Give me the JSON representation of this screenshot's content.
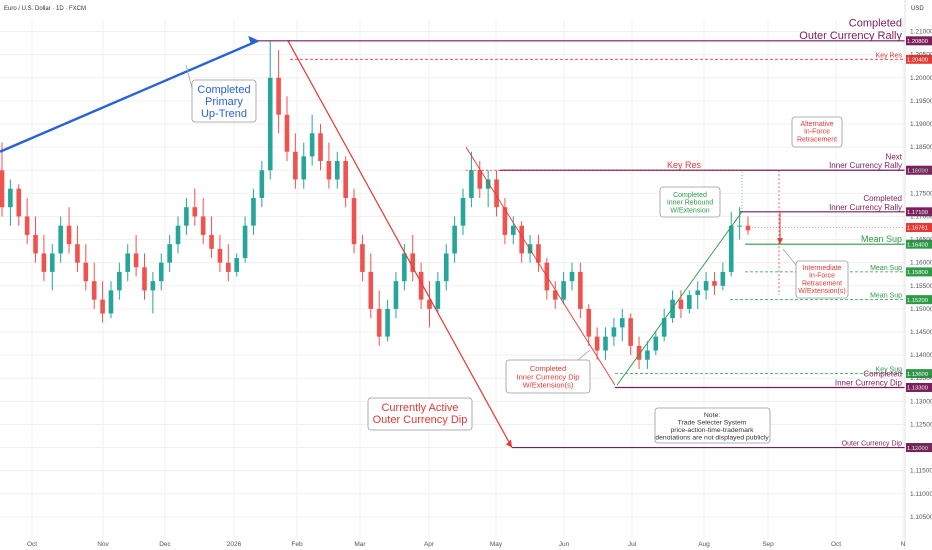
{
  "header": {
    "title": "Euro / U.S. Dollar · 1D · FXCM",
    "currency": "USD"
  },
  "colors": {
    "up": "#26a69a",
    "down": "#ef5350",
    "purple": "#7b1e5a",
    "red": "#e53935",
    "blue": "#2962d6",
    "green": "#2e9a48",
    "grid": "#f0f0f0"
  },
  "chart_data": {
    "type": "candlestick",
    "ylim": [
      1.1,
      1.2125
    ],
    "y_ticks": [
      "1.10500",
      "1.11000",
      "1.11500",
      "1.12000",
      "1.12500",
      "1.13000",
      "1.13500",
      "1.14000",
      "1.14500",
      "1.15000",
      "1.15500",
      "1.16000",
      "1.16500",
      "1.17000",
      "1.17500",
      "1.18000",
      "1.18500",
      "1.19000",
      "1.19500",
      "1.20000",
      "1.20500",
      "1.21000"
    ],
    "x_ticks": [
      "Oct",
      "Nov",
      "Dec",
      "2026",
      "Feb",
      "Mar",
      "Apr",
      "May",
      "Jun",
      "Jul",
      "Aug",
      "Sep",
      "Oct",
      "N"
    ],
    "candles": [
      [
        1.18,
        1.186,
        1.17,
        1.172
      ],
      [
        1.172,
        1.178,
        1.168,
        1.176
      ],
      [
        1.176,
        1.177,
        1.168,
        1.17
      ],
      [
        1.17,
        1.174,
        1.164,
        1.166
      ],
      [
        1.166,
        1.17,
        1.16,
        1.162
      ],
      [
        1.162,
        1.166,
        1.156,
        1.158
      ],
      [
        1.158,
        1.164,
        1.154,
        1.162
      ],
      [
        1.162,
        1.17,
        1.16,
        1.168
      ],
      [
        1.168,
        1.172,
        1.162,
        1.164
      ],
      [
        1.164,
        1.168,
        1.158,
        1.16
      ],
      [
        1.16,
        1.164,
        1.154,
        1.156
      ],
      [
        1.156,
        1.16,
        1.15,
        1.152
      ],
      [
        1.152,
        1.156,
        1.147,
        1.149
      ],
      [
        1.149,
        1.156,
        1.148,
        1.154
      ],
      [
        1.154,
        1.16,
        1.152,
        1.158
      ],
      [
        1.158,
        1.164,
        1.156,
        1.162
      ],
      [
        1.162,
        1.166,
        1.157,
        1.159
      ],
      [
        1.159,
        1.162,
        1.152,
        1.154
      ],
      [
        1.154,
        1.158,
        1.149,
        1.156
      ],
      [
        1.156,
        1.162,
        1.154,
        1.16
      ],
      [
        1.16,
        1.166,
        1.158,
        1.164
      ],
      [
        1.164,
        1.17,
        1.162,
        1.168
      ],
      [
        1.168,
        1.174,
        1.166,
        1.172
      ],
      [
        1.172,
        1.176,
        1.168,
        1.17
      ],
      [
        1.17,
        1.174,
        1.164,
        1.166
      ],
      [
        1.166,
        1.17,
        1.161,
        1.163
      ],
      [
        1.163,
        1.166,
        1.158,
        1.16
      ],
      [
        1.16,
        1.164,
        1.156,
        1.158
      ],
      [
        1.158,
        1.162,
        1.157,
        1.161
      ],
      [
        1.161,
        1.17,
        1.16,
        1.168
      ],
      [
        1.168,
        1.176,
        1.166,
        1.174
      ],
      [
        1.174,
        1.182,
        1.172,
        1.18
      ],
      [
        1.18,
        1.208,
        1.178,
        1.2
      ],
      [
        1.2,
        1.206,
        1.188,
        1.192
      ],
      [
        1.192,
        1.196,
        1.182,
        1.184
      ],
      [
        1.184,
        1.188,
        1.176,
        1.178
      ],
      [
        1.178,
        1.186,
        1.176,
        1.183
      ],
      [
        1.183,
        1.192,
        1.181,
        1.188
      ],
      [
        1.188,
        1.19,
        1.18,
        1.182
      ],
      [
        1.182,
        1.186,
        1.176,
        1.178
      ],
      [
        1.178,
        1.184,
        1.176,
        1.182
      ],
      [
        1.182,
        1.183,
        1.172,
        1.174
      ],
      [
        1.174,
        1.176,
        1.162,
        1.164
      ],
      [
        1.164,
        1.166,
        1.156,
        1.158
      ],
      [
        1.158,
        1.162,
        1.148,
        1.15
      ],
      [
        1.15,
        1.154,
        1.142,
        1.144
      ],
      [
        1.144,
        1.152,
        1.143,
        1.15
      ],
      [
        1.15,
        1.158,
        1.148,
        1.156
      ],
      [
        1.156,
        1.164,
        1.154,
        1.162
      ],
      [
        1.162,
        1.166,
        1.156,
        1.158
      ],
      [
        1.158,
        1.16,
        1.15,
        1.152
      ],
      [
        1.152,
        1.156,
        1.146,
        1.15
      ],
      [
        1.15,
        1.158,
        1.149,
        1.156
      ],
      [
        1.156,
        1.164,
        1.154,
        1.162
      ],
      [
        1.162,
        1.17,
        1.16,
        1.168
      ],
      [
        1.168,
        1.176,
        1.166,
        1.174
      ],
      [
        1.174,
        1.184,
        1.172,
        1.18
      ],
      [
        1.18,
        1.182,
        1.174,
        1.176
      ],
      [
        1.176,
        1.18,
        1.172,
        1.178
      ],
      [
        1.178,
        1.18,
        1.17,
        1.172
      ],
      [
        1.172,
        1.174,
        1.164,
        1.166
      ],
      [
        1.166,
        1.17,
        1.164,
        1.168
      ],
      [
        1.168,
        1.169,
        1.16,
        1.162
      ],
      [
        1.162,
        1.166,
        1.16,
        1.164
      ],
      [
        1.164,
        1.166,
        1.158,
        1.16
      ],
      [
        1.16,
        1.161,
        1.152,
        1.154
      ],
      [
        1.154,
        1.156,
        1.15,
        1.152
      ],
      [
        1.152,
        1.158,
        1.151,
        1.156
      ],
      [
        1.156,
        1.16,
        1.154,
        1.158
      ],
      [
        1.158,
        1.16,
        1.148,
        1.15
      ],
      [
        1.15,
        1.151,
        1.142,
        1.144
      ],
      [
        1.144,
        1.146,
        1.139,
        1.141
      ],
      [
        1.141,
        1.146,
        1.139,
        1.144
      ],
      [
        1.144,
        1.148,
        1.142,
        1.146
      ],
      [
        1.146,
        1.15,
        1.143,
        1.148
      ],
      [
        1.148,
        1.149,
        1.14,
        1.142
      ],
      [
        1.142,
        1.144,
        1.137,
        1.139
      ],
      [
        1.139,
        1.143,
        1.137,
        1.141
      ],
      [
        1.141,
        1.145,
        1.14,
        1.144
      ],
      [
        1.144,
        1.15,
        1.143,
        1.148
      ],
      [
        1.148,
        1.154,
        1.147,
        1.152
      ],
      [
        1.152,
        1.154,
        1.148,
        1.15
      ],
      [
        1.15,
        1.154,
        1.149,
        1.153
      ],
      [
        1.153,
        1.156,
        1.15,
        1.154
      ],
      [
        1.154,
        1.158,
        1.152,
        1.156
      ],
      [
        1.156,
        1.158,
        1.153,
        1.155
      ],
      [
        1.155,
        1.16,
        1.154,
        1.158
      ],
      [
        1.158,
        1.171,
        1.157,
        1.168
      ],
      [
        1.168,
        1.172,
        1.165,
        1.168
      ],
      [
        1.168,
        1.17,
        1.166,
        1.167
      ]
    ],
    "levels": [
      {
        "price": 1.208,
        "label": "Completed\nOuter Currency Rally",
        "value": "1.20800",
        "color": "#7b1e5a",
        "style": "solid"
      },
      {
        "price": 1.204,
        "label": "Key Res",
        "value": "1.20400",
        "color": "#e53935",
        "style": "dashed"
      },
      {
        "price": 1.18,
        "label": "Next\nInner Currency Rally",
        "value": "1.18000",
        "color": "#7b1e5a",
        "style": "solid"
      },
      {
        "price": 1.171,
        "label": "Completed\nInner Currency Rally",
        "value": "1.17100",
        "color": "#7b1e5a",
        "style": "solid"
      },
      {
        "price": 1.164,
        "label": "Mean Sup",
        "value": "1.16400",
        "color": "#2e9a48",
        "style": "solid"
      },
      {
        "price": 1.158,
        "label": "Mean Sup",
        "value": "1.15800",
        "color": "#2e9a48",
        "style": "dashed"
      },
      {
        "price": 1.152,
        "label": "Mean Sup",
        "value": "1.15200",
        "color": "#2e9a48",
        "style": "dashed"
      },
      {
        "price": 1.136,
        "label": "Key Sup",
        "value": "1.13600",
        "color": "#2e9a48",
        "style": "dashed"
      },
      {
        "price": 1.133,
        "label": "Completed\nInner Currency Dip",
        "value": "1.13300",
        "color": "#7b1e5a",
        "style": "solid"
      },
      {
        "price": 1.12,
        "label": "Outer Currency Dip",
        "value": "1.12000",
        "color": "#7b1e5a",
        "style": "solid"
      }
    ],
    "current_price": "1.16761",
    "annotations": [
      {
        "id": "primary-uptrend",
        "text": "Completed\nPrimary\nUp-Trend",
        "color": "#2962d6"
      },
      {
        "id": "outer-dip",
        "text": "Currently Active\nOuter Currency Dip",
        "color": "#e53935"
      },
      {
        "id": "key-res-mid",
        "text": "Key Res",
        "color": "#e53935"
      },
      {
        "id": "inner-dip",
        "text": "Completed\nInner Currency Dip\nW/Extension(s)",
        "color": "#e53935"
      },
      {
        "id": "inner-rebound",
        "text": "Completed\nInner Rebound\nW/Extension",
        "color": "#2e9a48"
      },
      {
        "id": "alt-retrace",
        "text": "Alternative\nIn-Force\nRetracement",
        "color": "#e53935"
      },
      {
        "id": "int-retrace",
        "text": "Intermediate\nIn-Force\nRetracement\nW/Extension(s)",
        "color": "#e53935"
      },
      {
        "id": "note",
        "text": "Note:\nTrade Selecter System\nprice-action-time-trademark\ndenotations are not displayed publicly",
        "color": "#333333"
      }
    ]
  }
}
